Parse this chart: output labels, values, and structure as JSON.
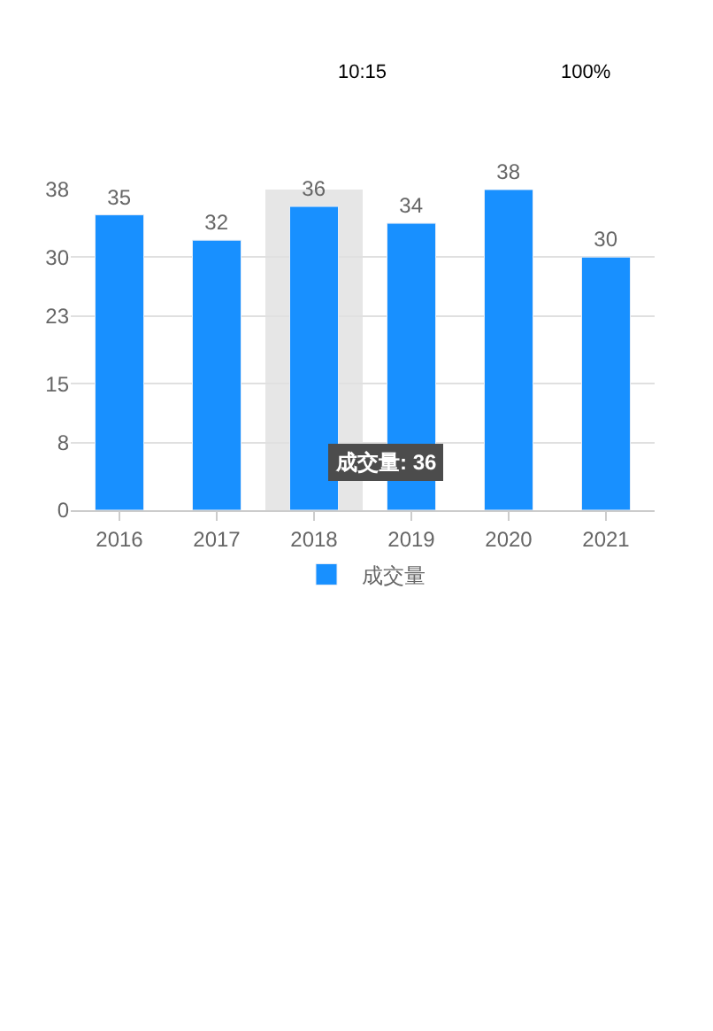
{
  "chart_data": {
    "type": "bar",
    "categories": [
      "2016",
      "2017",
      "2018",
      "2019",
      "2020",
      "2021"
    ],
    "series": [
      {
        "name": "成交量",
        "color": "#1890ff",
        "values": [
          35,
          32,
          36,
          34,
          38,
          30
        ]
      }
    ],
    "ylim": [
      0,
      38
    ],
    "yticks": [
      0,
      8,
      15,
      23,
      30,
      38
    ],
    "grid": "y",
    "legend": "bottom",
    "data_labels": true,
    "bands": [
      {
        "axis": "x",
        "from": "2018",
        "to": "2018",
        "color": "#e6e6e6"
      }
    ],
    "annotations": [
      "10:15",
      "100%",
      "成交量: 36"
    ]
  }
}
